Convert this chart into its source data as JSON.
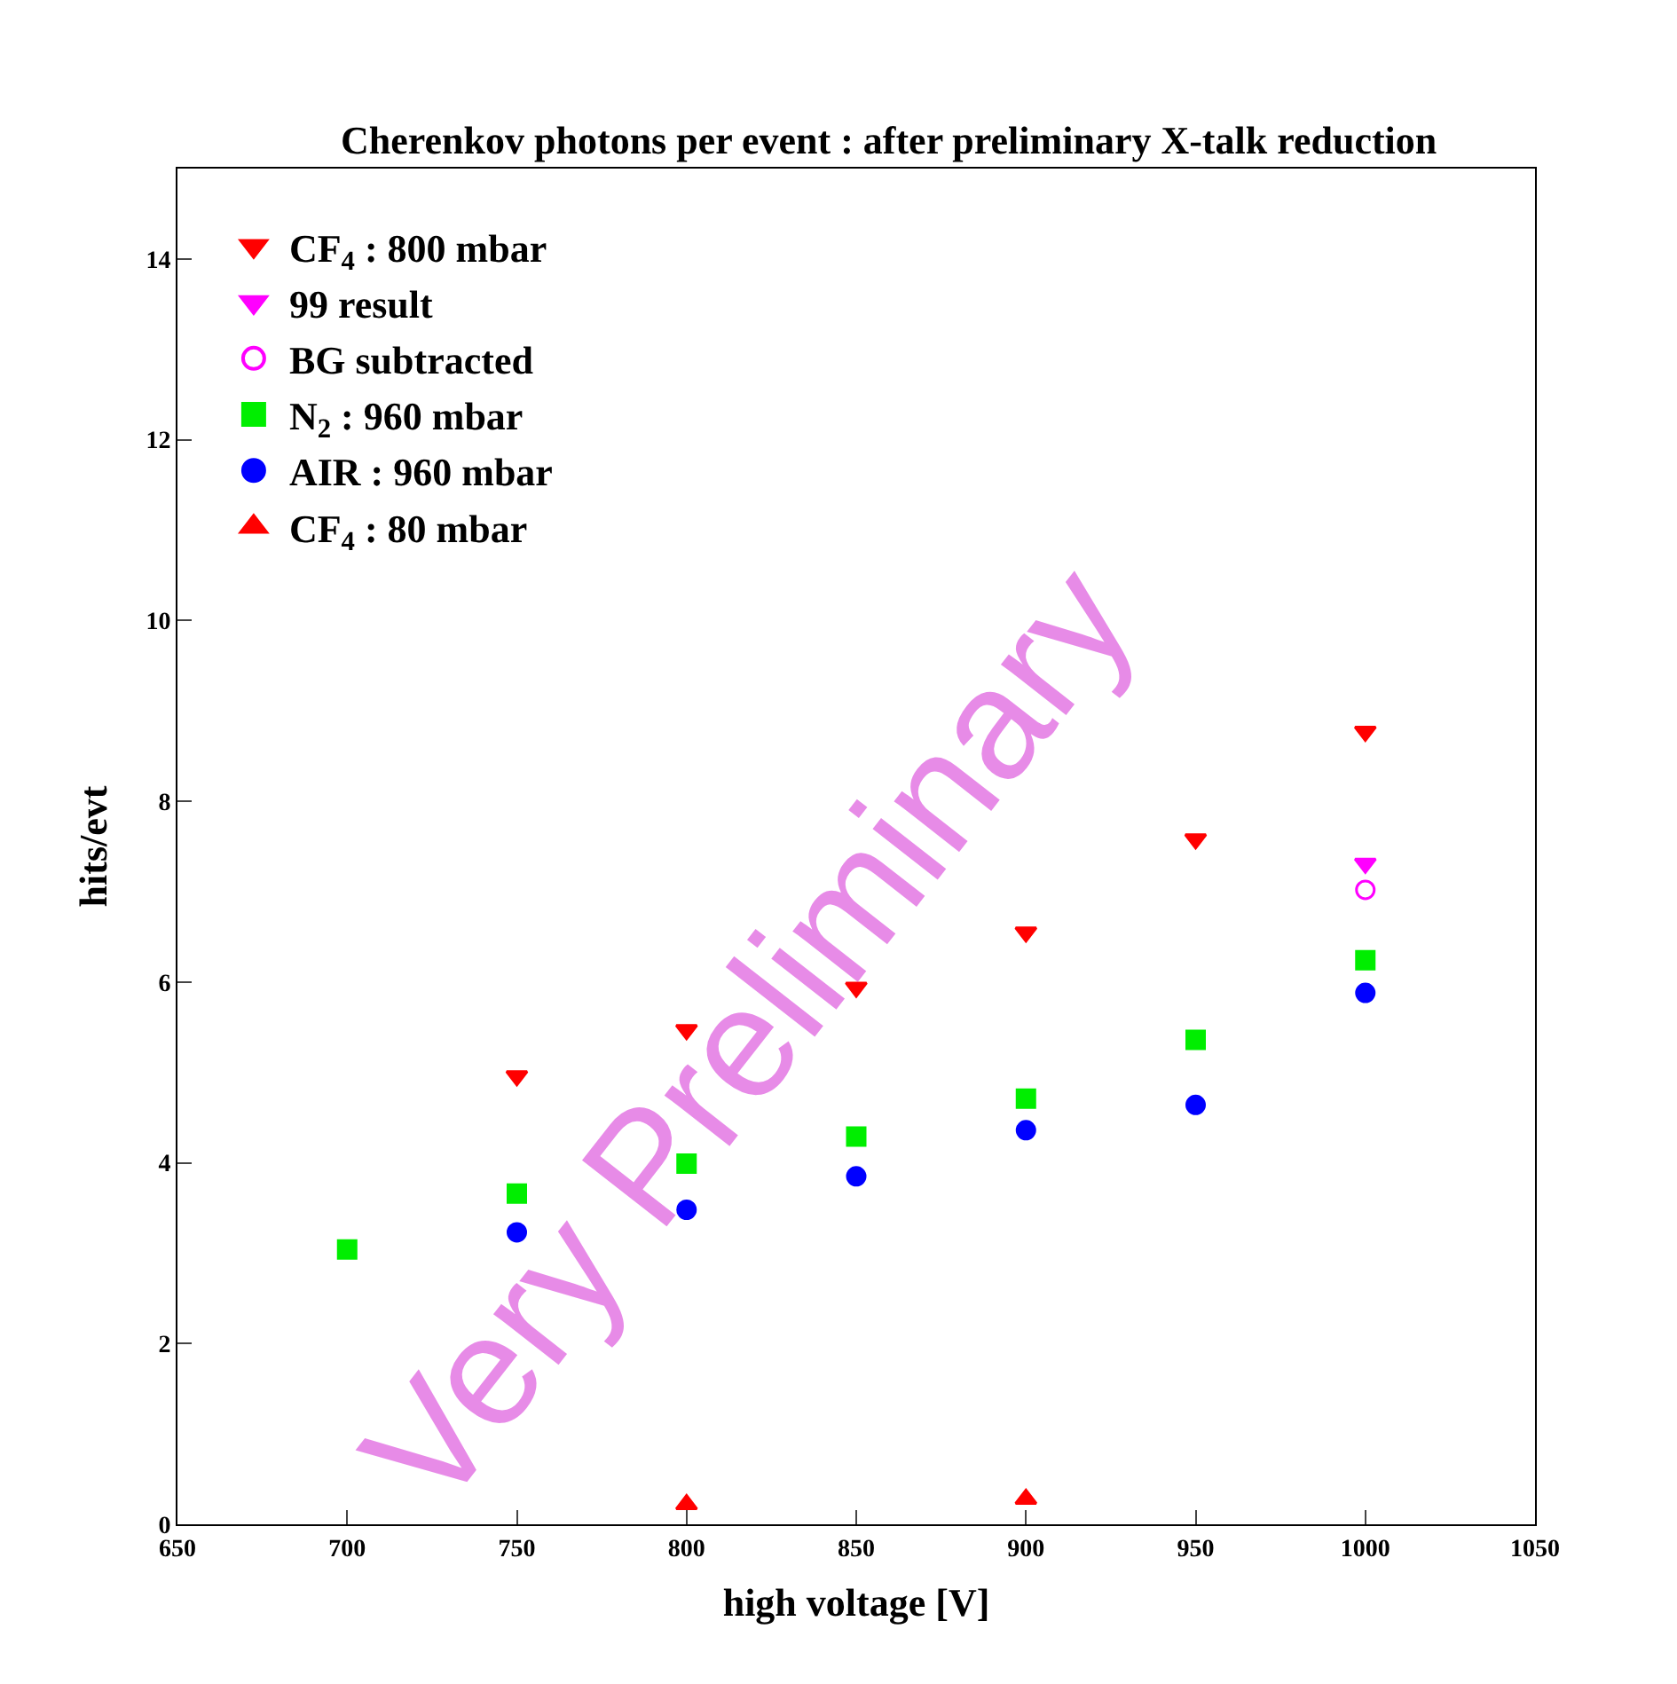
{
  "chart_data": {
    "type": "scatter",
    "title": "Cherenkov photons per event : after preliminary X-talk reduction",
    "xlabel": "high voltage [V]",
    "ylabel": "hits/evt",
    "xlim": [
      650,
      1050
    ],
    "xticks": [
      650,
      700,
      750,
      800,
      850,
      900,
      950,
      1000,
      1050
    ],
    "ylim": [
      0,
      15
    ],
    "yticks": [
      0,
      2,
      4,
      6,
      8,
      10,
      12,
      14
    ],
    "grid": false,
    "legend": "top left",
    "series": [
      {
        "name": "CF$_{4}$ : 800 mbar",
        "color": "#ff0000",
        "marker": "triangle-down",
        "x": [
          750,
          800,
          850,
          900,
          950,
          1000
        ],
        "values": [
          4.96,
          5.47,
          5.94,
          6.55,
          7.58,
          8.77
        ]
      },
      {
        "name": "99 result",
        "color": "#ff00ff",
        "marker": "triangle-down",
        "x": [
          1000
        ],
        "values": [
          7.31
        ]
      },
      {
        "name": "BG subtracted",
        "color": "#ff00ff",
        "marker": "circle-open",
        "x": [
          1000
        ],
        "values": [
          7.02
        ]
      },
      {
        "name": "N$_{2}$ : 960 mbar",
        "color": "#00ee00",
        "marker": "square",
        "x": [
          700,
          750,
          800,
          850,
          900,
          950,
          1000
        ],
        "values": [
          3.04,
          3.66,
          3.99,
          4.29,
          4.71,
          5.36,
          6.24
        ]
      },
      {
        "name": "AIR : 960 mbar",
        "color": "#0000ff",
        "marker": "circle",
        "x": [
          750,
          800,
          850,
          900,
          950,
          1000
        ],
        "values": [
          3.23,
          3.48,
          3.85,
          4.36,
          4.64,
          5.88
        ]
      },
      {
        "name": "CF$_{4}$ : 80 mbar",
        "color": "#ff0000",
        "marker": "triangle-up",
        "x": [
          800,
          900
        ],
        "values": [
          0.22,
          0.28
        ]
      }
    ],
    "annotations": [
      "Very Preliminary"
    ]
  }
}
